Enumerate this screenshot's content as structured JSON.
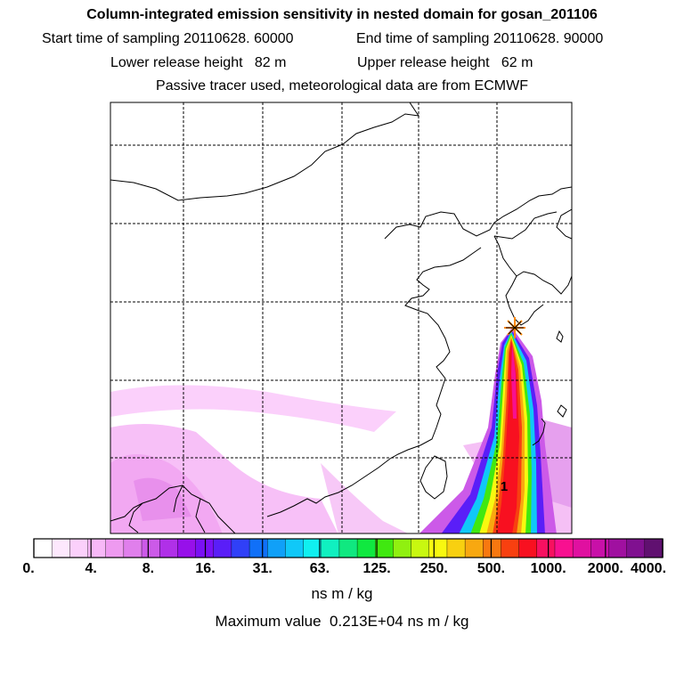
{
  "title": "Column-integrated emission sensitivity in nested domain for gosan_201106",
  "sampling": {
    "start_label": "Start time of sampling 20110628. 60000",
    "end_label": "End time of sampling 20110628. 90000"
  },
  "release": {
    "lower_label": "Lower release height   82 m",
    "upper_label": "Upper release height   62 m"
  },
  "note": "Passive tracer used, meteorological data are from ECMWF",
  "map": {
    "marker_label": "1",
    "release_site_icon": "star-icon",
    "colors": {
      "coast": "#000000",
      "grid": "#000000",
      "star": "#ff8800"
    }
  },
  "colorbar": {
    "tick_labels": [
      "0.",
      "4.",
      "8.",
      "16.",
      "31.",
      "63.",
      "125.",
      "250.",
      "500.",
      "1000.",
      "2000.",
      "4000."
    ],
    "colors": [
      "#ffffff",
      "#fde8fd",
      "#fbd0fb",
      "#f7b8f7",
      "#ee9af0",
      "#e07fec",
      "#cc5ae8",
      "#b030e8",
      "#9710ea",
      "#7a10f4",
      "#5a1ef8",
      "#3040f8",
      "#1070f8",
      "#10a0f8",
      "#10c8f8",
      "#10f0f0",
      "#10f0c0",
      "#10e880",
      "#10e840",
      "#40e810",
      "#90f010",
      "#c8f810",
      "#f8f810",
      "#f8d010",
      "#f8a810",
      "#f87810",
      "#f84010",
      "#f81020",
      "#f81060",
      "#f81090",
      "#e010a0",
      "#c810a8",
      "#a010a0",
      "#801090",
      "#601070"
    ]
  },
  "unit": "ns m / kg",
  "max_value_label": "Maximum value  0.213E+04 ns m / kg"
}
